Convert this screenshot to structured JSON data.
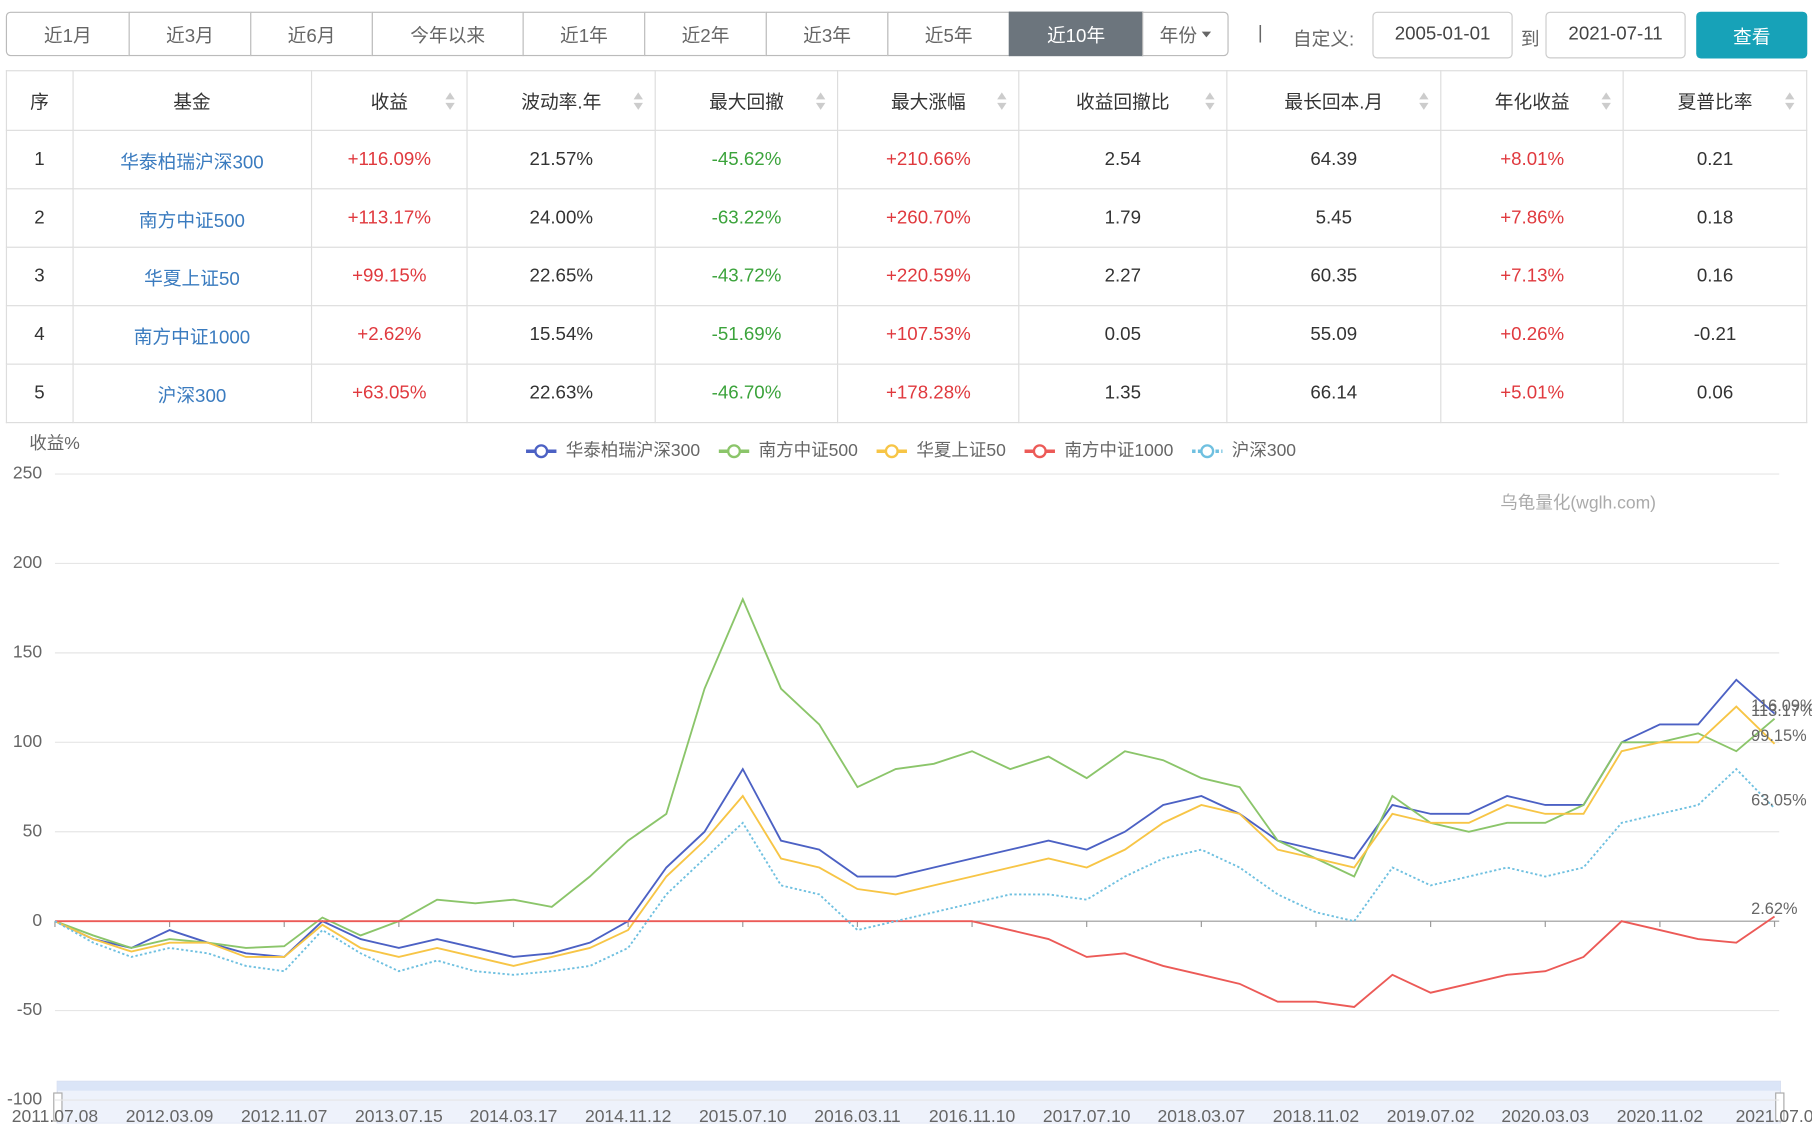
{
  "toolbar": {
    "periods": [
      "近1月",
      "近3月",
      "近6月",
      "今年以来",
      "近1年",
      "近2年",
      "近3年",
      "近5年",
      "近10年"
    ],
    "active": 8,
    "year_select": "年份",
    "separator": "|",
    "custom_label": "自定义:",
    "start_date": "2005-01-01",
    "to_label": "到",
    "end_date": "2021-07-11",
    "submit": "查看"
  },
  "table": {
    "headers": [
      "序",
      "基金",
      "收益",
      "波动率.年",
      "最大回撤",
      "最大涨幅",
      "收益回撤比",
      "最长回本.月",
      "年化收益",
      "夏普比率"
    ],
    "rows": [
      [
        "1",
        "华泰柏瑞沪深300",
        "+116.09%",
        "21.57%",
        "-45.62%",
        "+210.66%",
        "2.54",
        "64.39",
        "+8.01%",
        "0.21"
      ],
      [
        "2",
        "南方中证500",
        "+113.17%",
        "24.00%",
        "-63.22%",
        "+260.70%",
        "1.79",
        "5.45",
        "+7.86%",
        "0.18"
      ],
      [
        "3",
        "华夏上证50",
        "+99.15%",
        "22.65%",
        "-43.72%",
        "+220.59%",
        "2.27",
        "60.35",
        "+7.13%",
        "0.16"
      ],
      [
        "4",
        "南方中证1000",
        "+2.62%",
        "15.54%",
        "-51.69%",
        "+107.53%",
        "0.05",
        "55.09",
        "+0.26%",
        "-0.21"
      ],
      [
        "5",
        "沪深300",
        "+63.05%",
        "22.63%",
        "-46.70%",
        "+178.28%",
        "1.35",
        "66.14",
        "+5.01%",
        "0.06"
      ]
    ]
  },
  "chart_data": {
    "type": "line",
    "y_label": "收益%",
    "watermark": "乌龟量化(wglh.com)",
    "categories": [
      "2011.07.08",
      null,
      null,
      "2012.03.09",
      null,
      null,
      "2012.11.07",
      null,
      null,
      "2013.07.15",
      null,
      null,
      "2014.03.17",
      null,
      null,
      "2014.11.12",
      null,
      null,
      "2015.07.10",
      null,
      null,
      "2016.03.11",
      null,
      null,
      "2016.11.10",
      null,
      null,
      "2017.07.10",
      null,
      null,
      "2018.03.07",
      null,
      null,
      "2018.11.02",
      null,
      null,
      "2019.07.02",
      null,
      null,
      "2020.03.03",
      null,
      null,
      "2020.11.02",
      null,
      null,
      "2021.07.0"
    ],
    "series": [
      {
        "name": "华泰柏瑞沪深300",
        "color": "#4c61c4",
        "end_label": "116.09%",
        "values": [
          0,
          -10,
          -15,
          -5,
          -12,
          -18,
          -20,
          0,
          -10,
          -15,
          -10,
          -15,
          -20,
          -18,
          -12,
          0,
          30,
          50,
          85,
          45,
          40,
          25,
          25,
          30,
          35,
          40,
          45,
          40,
          50,
          65,
          70,
          60,
          45,
          40,
          35,
          65,
          60,
          60,
          70,
          65,
          65,
          100,
          110,
          110,
          135,
          116.09
        ]
      },
      {
        "name": "南方中证500",
        "color": "#8bc56a",
        "end_label": "113.17%",
        "values": [
          0,
          -8,
          -15,
          -10,
          -12,
          -15,
          -14,
          2,
          -8,
          0,
          12,
          10,
          12,
          8,
          25,
          45,
          60,
          130,
          180,
          130,
          110,
          75,
          85,
          88,
          95,
          85,
          92,
          80,
          95,
          90,
          80,
          75,
          45,
          35,
          25,
          70,
          55,
          50,
          55,
          55,
          65,
          100,
          100,
          105,
          95,
          113.17
        ]
      },
      {
        "name": "华夏上证50",
        "color": "#f7c546",
        "end_label": "99.15%",
        "values": [
          0,
          -10,
          -17,
          -12,
          -12,
          -20,
          -20,
          -2,
          -15,
          -20,
          -15,
          -20,
          -25,
          -20,
          -15,
          -5,
          25,
          45,
          70,
          35,
          30,
          18,
          15,
          20,
          25,
          30,
          35,
          30,
          40,
          55,
          65,
          60,
          40,
          35,
          30,
          60,
          55,
          55,
          65,
          60,
          60,
          95,
          100,
          100,
          120,
          99.15
        ]
      },
      {
        "name": "南方中证1000",
        "color": "#ec5a57",
        "end_label": "2.62%",
        "values": [
          0,
          0,
          0,
          0,
          0,
          0,
          0,
          0,
          0,
          0,
          0,
          0,
          0,
          0,
          0,
          0,
          0,
          0,
          0,
          0,
          0,
          0,
          0,
          0,
          0,
          -5,
          -10,
          -20,
          -18,
          -25,
          -30,
          -35,
          -45,
          -45,
          -48,
          -30,
          -40,
          -35,
          -30,
          -28,
          -20,
          0,
          -5,
          -10,
          -12,
          2.62
        ]
      },
      {
        "name": "沪深300",
        "color": "#6fc0e0",
        "line_style": "dotted",
        "end_label": "63.05%",
        "values": [
          0,
          -12,
          -20,
          -15,
          -18,
          -25,
          -28,
          -5,
          -18,
          -28,
          -22,
          -28,
          -30,
          -28,
          -25,
          -15,
          15,
          35,
          55,
          20,
          15,
          -5,
          0,
          5,
          10,
          15,
          15,
          12,
          25,
          35,
          40,
          30,
          15,
          5,
          0,
          30,
          20,
          25,
          30,
          25,
          30,
          55,
          60,
          65,
          85,
          63.05
        ]
      }
    ],
    "ylim": [
      -100,
      250
    ],
    "yticks": [
      -100,
      -50,
      0,
      50,
      100,
      150,
      200,
      250
    ],
    "grid": true
  }
}
